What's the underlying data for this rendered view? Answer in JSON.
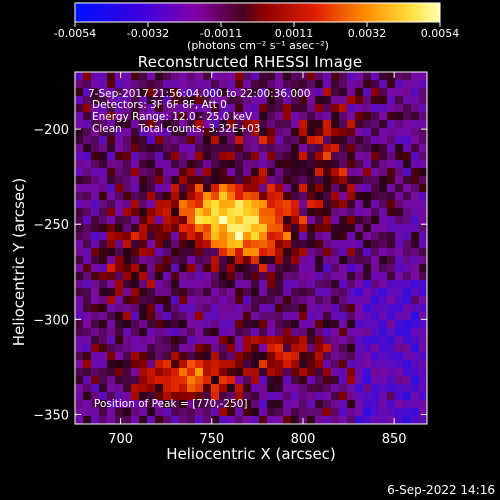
{
  "chart_data": {
    "type": "heatmap",
    "title": "Reconstructed RHESSI Image",
    "xlabel": "Heliocentric X (arcsec)",
    "ylabel": "Heliocentric Y (arcsec)",
    "xlim": [
      675,
      868
    ],
    "ylim": [
      -355,
      -170
    ],
    "x_ticks": [
      700,
      750,
      800,
      850
    ],
    "y_ticks": [
      -200,
      -250,
      -300,
      -350
    ],
    "colorbar": {
      "range": [
        -0.0054,
        0.0054
      ],
      "tick_labels": [
        "-0.0054",
        "-0.0032",
        "-0.0011",
        "0.0011",
        "0.0032",
        "0.0054"
      ],
      "unit": "(photons cm⁻² s⁻¹ asec⁻²)",
      "colors": [
        "#0010ff",
        "#5a00c8",
        "#9000a8",
        "#b00000",
        "#e63000",
        "#ffaa00",
        "#ffff80"
      ]
    },
    "annotations": [
      "7-Sep-2017 21:56:04.000 to 22:00:36.000",
      "Detectors: 3F 6F 8F, Att 0",
      "Energy Range: 12.0 - 25.0 keV",
      "Clean     Total counts: 3.32E+03"
    ],
    "peak_label": "Position of Peak = [770,-250]",
    "peak": {
      "x": 770,
      "y": -250,
      "value": 0.0054
    },
    "sources": [
      {
        "x": 770,
        "y": -250,
        "sx": 17,
        "sy": 13,
        "amp": 0.0054
      },
      {
        "x": 745,
        "y": -243,
        "sx": 14,
        "sy": 10,
        "amp": 0.0032
      },
      {
        "x": 738,
        "y": -330,
        "sx": 18,
        "sy": 8,
        "amp": 0.0034
      },
      {
        "x": 790,
        "y": -318,
        "sx": 20,
        "sy": 8,
        "amp": 0.0019
      },
      {
        "x": 815,
        "y": -215,
        "sx": 12,
        "sy": 22,
        "amp": 0.0017
      },
      {
        "x": 705,
        "y": -265,
        "sx": 10,
        "sy": 25,
        "amp": 0.0013
      },
      {
        "x": 770,
        "y": -205,
        "sx": 15,
        "sy": 8,
        "amp": 0.0012
      }
    ]
  },
  "footer_date": "6-Sep-2022 14:16"
}
